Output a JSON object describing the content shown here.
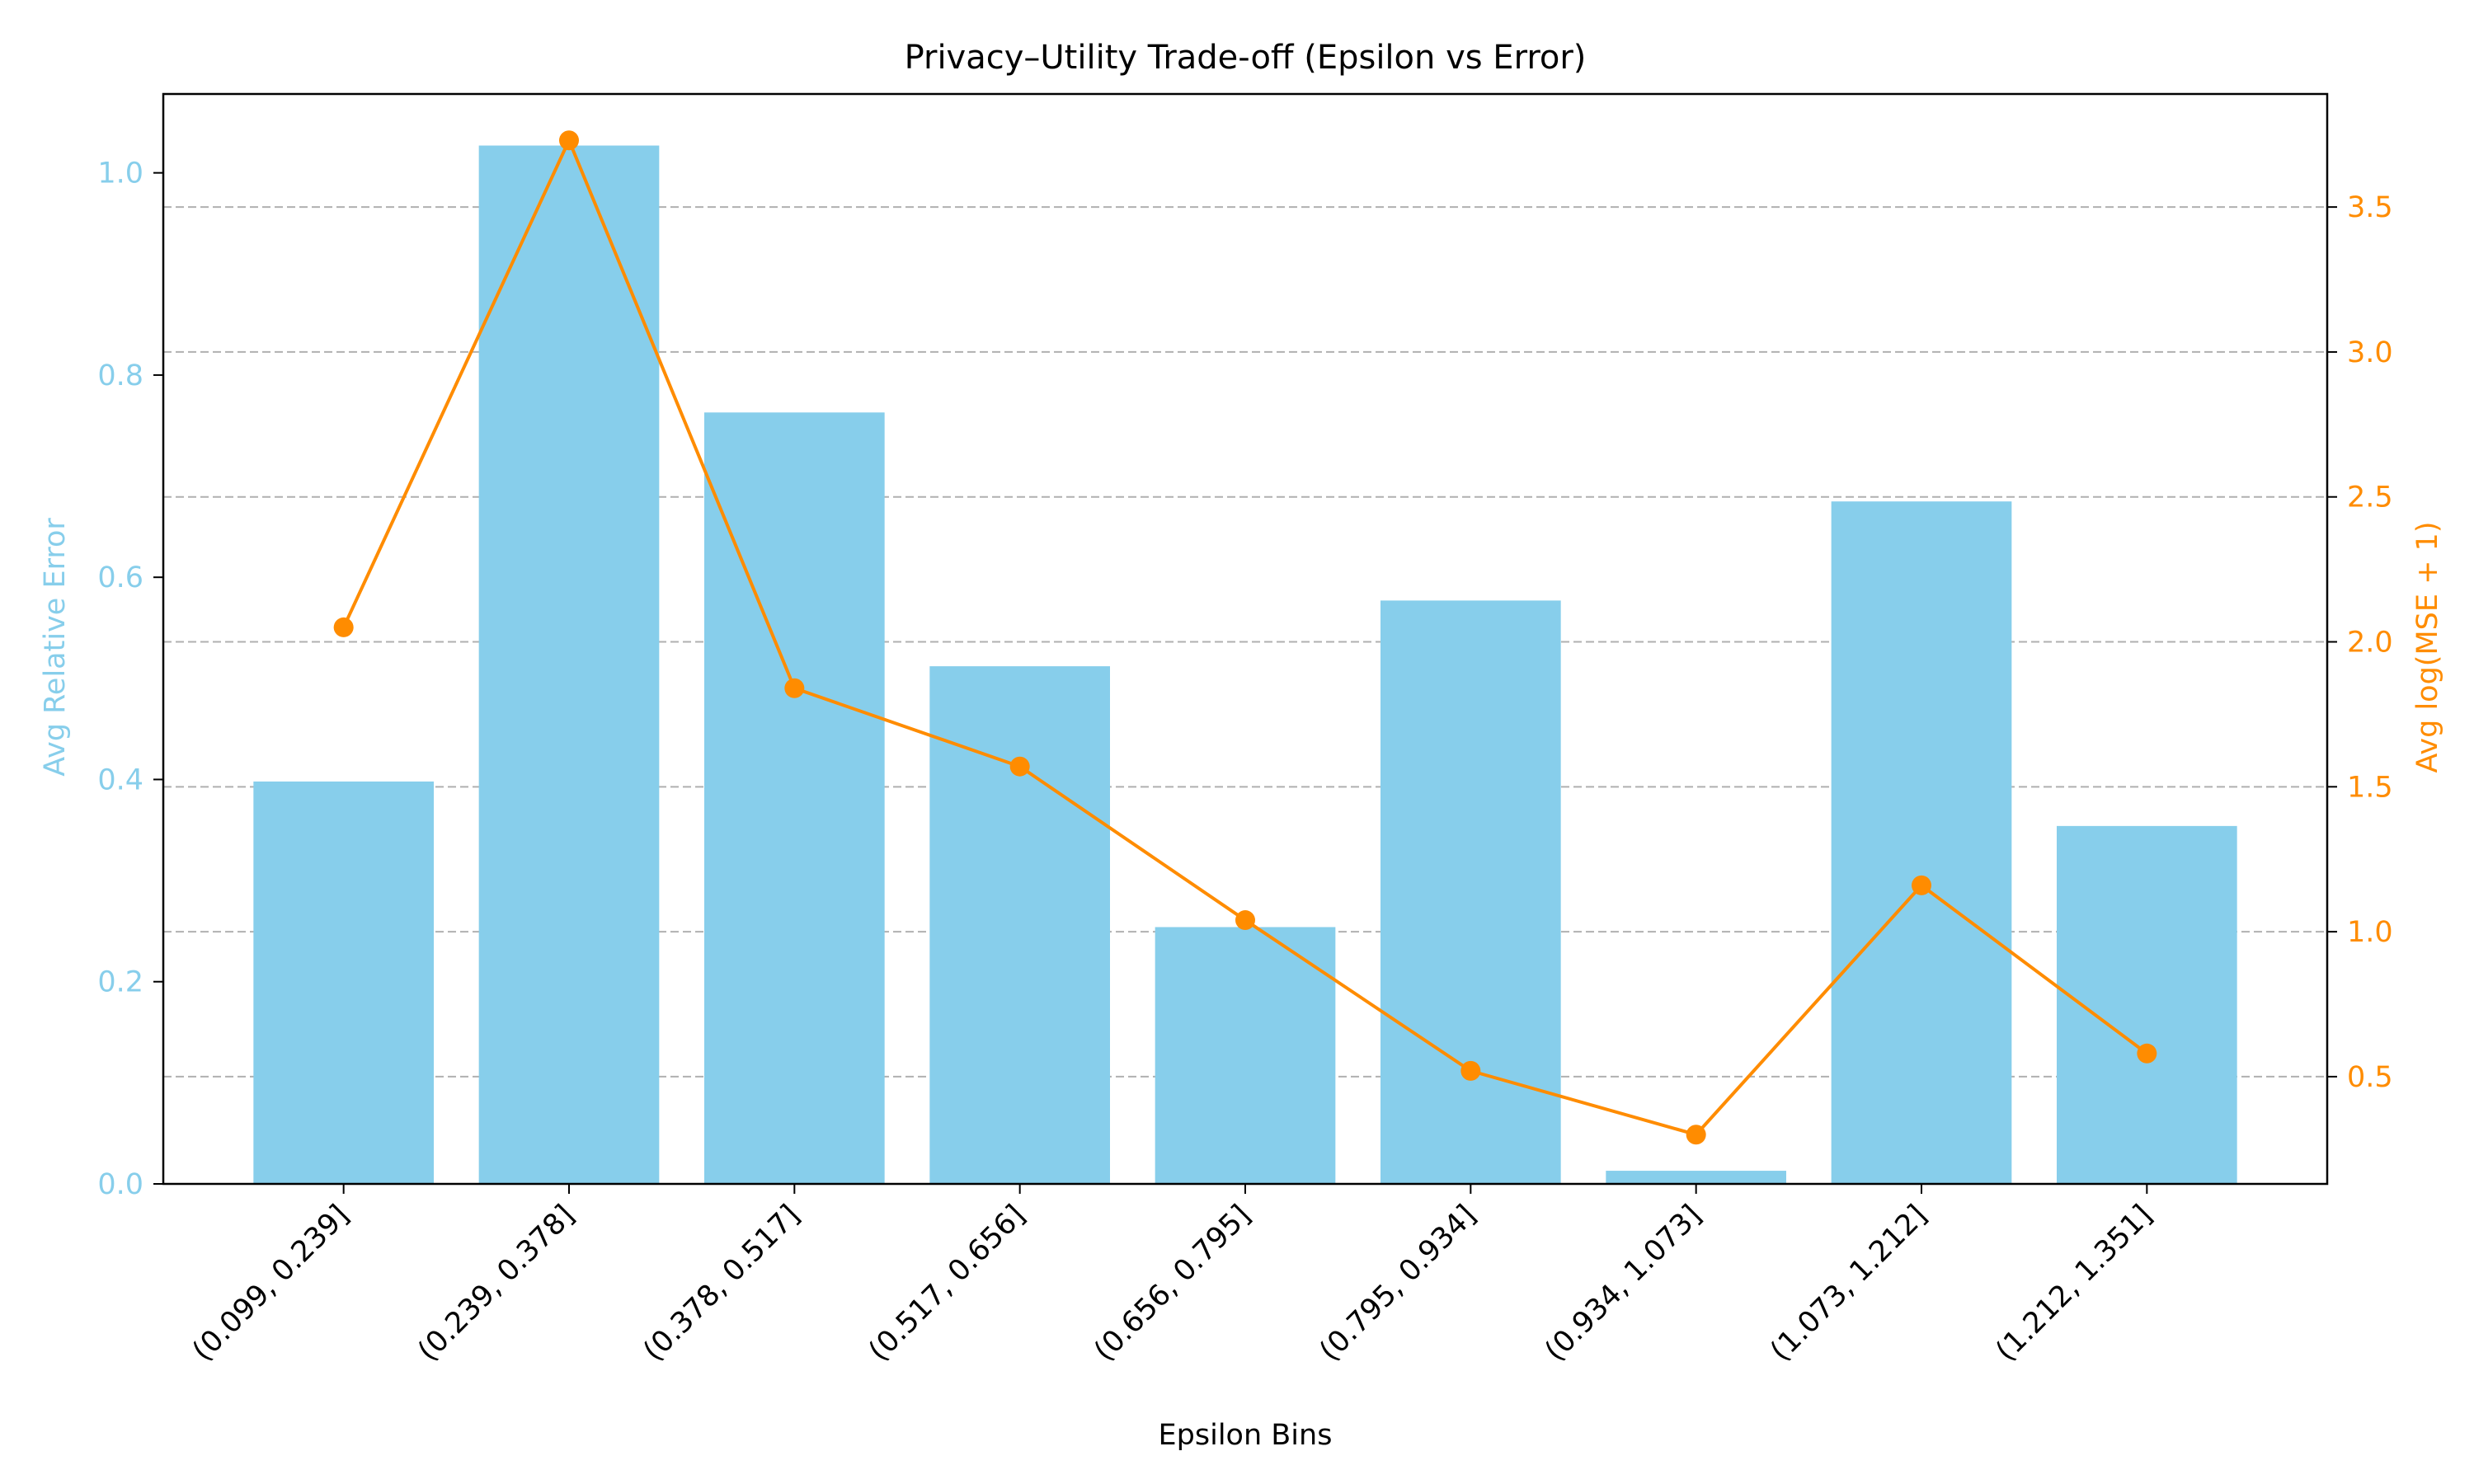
{
  "chart_data": {
    "type": "bar",
    "title": "Privacy–Utility Trade-off (Epsilon vs Error)",
    "xlabel": "Epsilon Bins",
    "categories": [
      "(0.099, 0.239]",
      "(0.239, 0.378]",
      "(0.378, 0.517]",
      "(0.517, 0.656]",
      "(0.656, 0.795]",
      "(0.795, 0.934]",
      "(0.934, 1.073]",
      "(1.073, 1.212]",
      "(1.212, 1.351]"
    ],
    "left_axis": {
      "label": "Avg Relative Error",
      "range": [
        0,
        1.078
      ],
      "ticks": [
        0.0,
        0.2,
        0.4,
        0.6,
        0.8,
        1.0
      ],
      "tick_labels": [
        "0.0",
        "0.2",
        "0.4",
        "0.6",
        "0.8",
        "1.0"
      ],
      "color": "#87ceeb"
    },
    "right_axis": {
      "label": "Avg log(MSE + 1)",
      "range": [
        0.13,
        3.89
      ],
      "ticks": [
        0.5,
        1.0,
        1.5,
        2.0,
        2.5,
        3.0,
        3.5
      ],
      "tick_labels": [
        "0.5",
        "1.0",
        "1.5",
        "2.0",
        "2.5",
        "3.0",
        "3.5"
      ],
      "color": "#ff8c00"
    },
    "series": [
      {
        "kind": "bar",
        "axis": "left",
        "color": "#87ceeb",
        "values": [
          0.398,
          1.027,
          0.763,
          0.512,
          0.254,
          0.577,
          0.013,
          0.675,
          0.354
        ]
      },
      {
        "kind": "line",
        "axis": "right",
        "color": "#ff8c00",
        "marker": "circle",
        "values": [
          2.05,
          3.73,
          1.84,
          1.57,
          1.04,
          0.52,
          0.3,
          1.16,
          0.58
        ]
      }
    ],
    "grid": {
      "y": true,
      "x": false,
      "style": "dashed",
      "follows": "right_axis"
    },
    "legend": "none"
  }
}
